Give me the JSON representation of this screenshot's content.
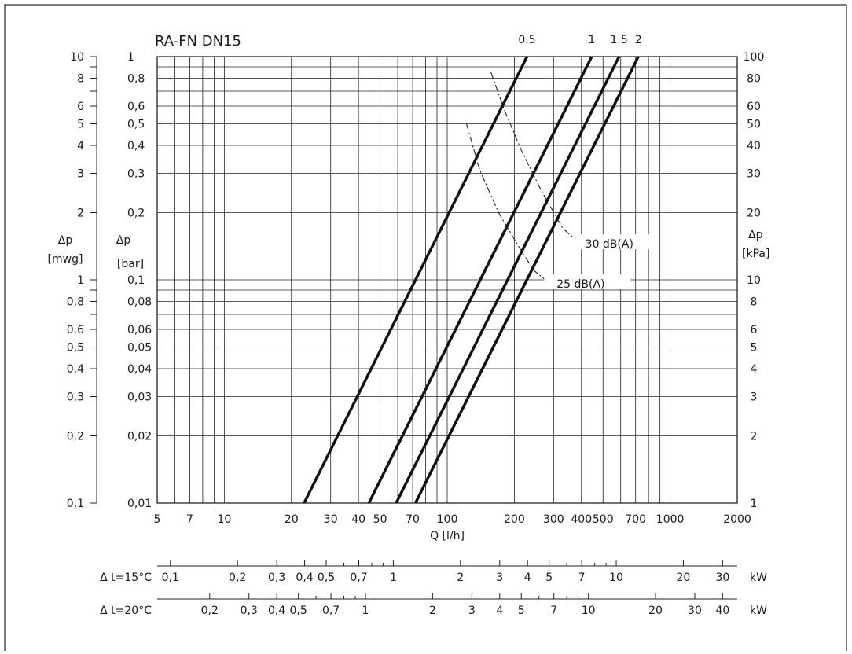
{
  "chart_data": {
    "type": "line",
    "title": "RA-FN  DN15",
    "scale": {
      "x": "log",
      "y": "log"
    },
    "xlabel": "Q [l/h]",
    "xlim": [
      5,
      2000
    ],
    "ylim_bar": [
      0.01,
      1
    ],
    "x_ticks": [
      {
        "v": 5,
        "label": "5"
      },
      {
        "v": 7,
        "label": "7"
      },
      {
        "v": 10,
        "label": "10"
      },
      {
        "v": 20,
        "label": "20"
      },
      {
        "v": 30,
        "label": "30"
      },
      {
        "v": 40,
        "label": "40"
      },
      {
        "v": 50,
        "label": "50"
      },
      {
        "v": 70,
        "label": "70"
      },
      {
        "v": 100,
        "label": "100"
      },
      {
        "v": 200,
        "label": "200"
      },
      {
        "v": 300,
        "label": "300"
      },
      {
        "v": 400,
        "label": "400"
      },
      {
        "v": 500,
        "label": "500"
      },
      {
        "v": 700,
        "label": "700"
      },
      {
        "v": 1000,
        "label": "1000"
      },
      {
        "v": 2000,
        "label": "2000"
      }
    ],
    "y_left_mwg": {
      "label1": "Δp",
      "label2": "[mwg]",
      "ticks": [
        {
          "v": 1,
          "label": "10"
        },
        {
          "v": 0.8,
          "label": "8"
        },
        {
          "v": 0.6,
          "label": "6"
        },
        {
          "v": 0.5,
          "label": "5"
        },
        {
          "v": 0.4,
          "label": "4"
        },
        {
          "v": 0.3,
          "label": "3"
        },
        {
          "v": 0.2,
          "label": "2"
        },
        {
          "v": 0.1,
          "label": "1"
        },
        {
          "v": 0.08,
          "label": "0,8"
        },
        {
          "v": 0.06,
          "label": "0,6"
        },
        {
          "v": 0.05,
          "label": "0,5"
        },
        {
          "v": 0.04,
          "label": "0,4"
        },
        {
          "v": 0.03,
          "label": "0,3"
        },
        {
          "v": 0.02,
          "label": "0,2"
        },
        {
          "v": 0.01,
          "label": "0,1"
        }
      ]
    },
    "y_left_bar": {
      "label1": "Δp",
      "label2": "[bar]",
      "ticks": [
        {
          "v": 1,
          "label": "1"
        },
        {
          "v": 0.8,
          "label": "0,8"
        },
        {
          "v": 0.6,
          "label": "0,6"
        },
        {
          "v": 0.5,
          "label": "0,5"
        },
        {
          "v": 0.4,
          "label": "0,4"
        },
        {
          "v": 0.3,
          "label": "0,3"
        },
        {
          "v": 0.2,
          "label": "0,2"
        },
        {
          "v": 0.1,
          "label": "0,1"
        },
        {
          "v": 0.08,
          "label": "0,08"
        },
        {
          "v": 0.06,
          "label": "0,06"
        },
        {
          "v": 0.05,
          "label": "0,05"
        },
        {
          "v": 0.04,
          "label": "0,04"
        },
        {
          "v": 0.03,
          "label": "0,03"
        },
        {
          "v": 0.02,
          "label": "0,02"
        },
        {
          "v": 0.01,
          "label": "0,01"
        }
      ]
    },
    "y_right_kpa": {
      "label1": "Δp",
      "label2": "[kPa]",
      "ticks": [
        {
          "v": 1,
          "label": "100"
        },
        {
          "v": 0.8,
          "label": "80"
        },
        {
          "v": 0.6,
          "label": "60"
        },
        {
          "v": 0.5,
          "label": "50"
        },
        {
          "v": 0.4,
          "label": "40"
        },
        {
          "v": 0.3,
          "label": "30"
        },
        {
          "v": 0.2,
          "label": "20"
        },
        {
          "v": 0.1,
          "label": "10"
        },
        {
          "v": 0.08,
          "label": "8"
        },
        {
          "v": 0.06,
          "label": "6"
        },
        {
          "v": 0.05,
          "label": "5"
        },
        {
          "v": 0.04,
          "label": "4"
        },
        {
          "v": 0.03,
          "label": "3"
        },
        {
          "v": 0.02,
          "label": "2"
        },
        {
          "v": 0.01,
          "label": "1"
        }
      ]
    },
    "series": [
      {
        "name": "0.5",
        "points": [
          [
            22.8,
            0.01
          ],
          [
            228,
            1
          ]
        ]
      },
      {
        "name": "1",
        "points": [
          [
            44.5,
            0.01
          ],
          [
            445,
            1
          ]
        ]
      },
      {
        "name": "1.5",
        "points": [
          [
            59,
            0.01
          ],
          [
            590,
            1
          ]
        ]
      },
      {
        "name": "2",
        "points": [
          [
            72,
            0.01
          ],
          [
            720,
            1
          ]
        ]
      }
    ],
    "noise_lines": [
      {
        "label": "30  dB(A)",
        "points": [
          [
            157,
            0.85
          ],
          [
            180,
            0.58
          ],
          [
            215,
            0.38
          ],
          [
            265,
            0.25
          ],
          [
            330,
            0.17
          ],
          [
            395,
            0.145
          ]
        ],
        "label_at": [
          430,
          0.145
        ]
      },
      {
        "label": "25  dB(A)",
        "points": [
          [
            122,
            0.5
          ],
          [
            140,
            0.31
          ],
          [
            170,
            0.2
          ],
          [
            210,
            0.14
          ],
          [
            245,
            0.11
          ],
          [
            290,
            0.096
          ]
        ],
        "label_at": [
          320,
          0.096
        ]
      }
    ],
    "secondary_x_axes": [
      {
        "label": "Δ t=15°C",
        "unit": "kW",
        "factor": 0.01745,
        "ticks": [
          {
            "v": 0.1,
            "label": "0,1"
          },
          {
            "v": 0.2,
            "label": "0,2"
          },
          {
            "v": 0.3,
            "label": "0,3"
          },
          {
            "v": 0.4,
            "label": "0,4"
          },
          {
            "v": 0.5,
            "label": "0,5"
          },
          {
            "v": 0.7,
            "label": "0,7"
          },
          {
            "v": 1,
            "label": "1"
          },
          {
            "v": 2,
            "label": "2"
          },
          {
            "v": 3,
            "label": "3"
          },
          {
            "v": 4,
            "label": "4"
          },
          {
            "v": 5,
            "label": "5"
          },
          {
            "v": 7,
            "label": "7"
          },
          {
            "v": 10,
            "label": "10"
          },
          {
            "v": 20,
            "label": "20"
          },
          {
            "v": 30,
            "label": "30"
          }
        ],
        "minor": [
          0.6,
          0.8,
          0.9,
          6,
          8,
          9
        ]
      },
      {
        "label": "Δ t=20°C",
        "unit": "kW",
        "factor": 0.02326,
        "ticks": [
          {
            "v": 0.2,
            "label": "0,2"
          },
          {
            "v": 0.3,
            "label": "0,3"
          },
          {
            "v": 0.4,
            "label": "0,4"
          },
          {
            "v": 0.5,
            "label": "0,5"
          },
          {
            "v": 0.7,
            "label": "0,7"
          },
          {
            "v": 1,
            "label": "1"
          },
          {
            "v": 2,
            "label": "2"
          },
          {
            "v": 3,
            "label": "3"
          },
          {
            "v": 4,
            "label": "4"
          },
          {
            "v": 5,
            "label": "5"
          },
          {
            "v": 7,
            "label": "7"
          },
          {
            "v": 10,
            "label": "10"
          },
          {
            "v": 20,
            "label": "20"
          },
          {
            "v": 30,
            "label": "30"
          },
          {
            "v": 40,
            "label": "40"
          }
        ],
        "minor": [
          0.6,
          0.8,
          0.9,
          6,
          8,
          9
        ]
      }
    ],
    "grid": true
  }
}
